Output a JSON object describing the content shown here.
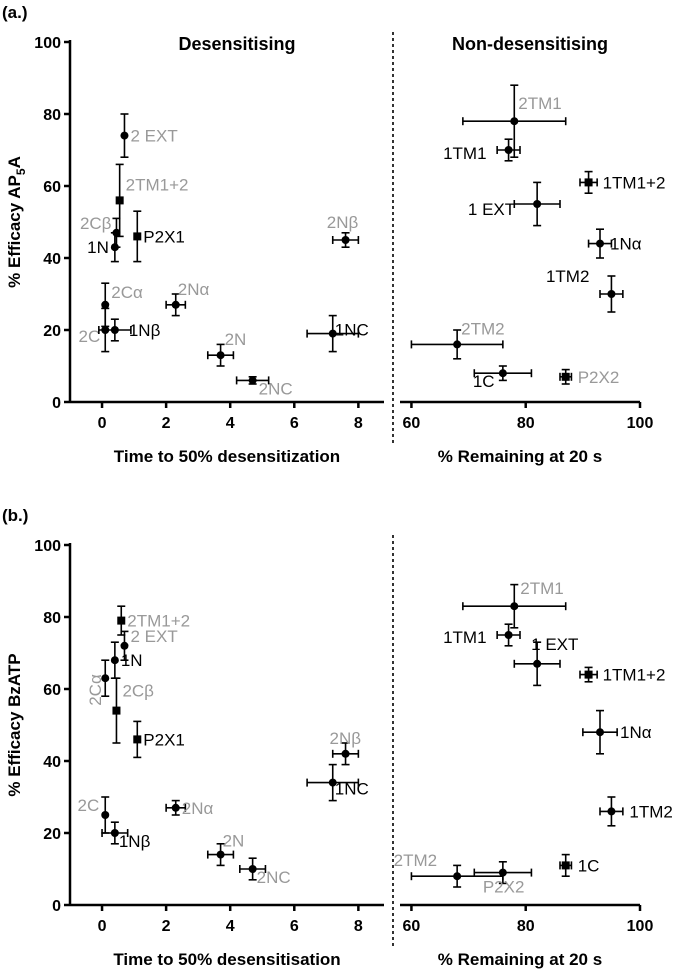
{
  "colors": {
    "black": "#000000",
    "gray": "#999999"
  },
  "chart_data": [
    {
      "type": "scatter",
      "panel_label": "(a.)",
      "ylabel_parts": [
        "% Efficacy AP",
        "5",
        "A"
      ],
      "ylim": [
        0,
        100
      ],
      "yticks": [
        "0",
        "20",
        "40",
        "60",
        "80",
        "100"
      ],
      "left": {
        "title": "Desensitising",
        "xlabel": "Time to 50% desensitization",
        "xlim": [
          -1,
          8.8
        ],
        "xticks": [
          "0",
          "2",
          "4",
          "6",
          "8"
        ],
        "points": [
          {
            "label": "2 EXT",
            "color": "gray",
            "marker": "circle",
            "x": 0.7,
            "y": 74,
            "xerr": 0,
            "yerr": 6
          },
          {
            "label": "2TM1+2",
            "color": "gray",
            "marker": "square",
            "x": 0.55,
            "y": 56,
            "xerr": 0,
            "yerr": 10
          },
          {
            "label": "P2X1",
            "color": "black",
            "marker": "square",
            "x": 1.1,
            "y": 46,
            "xerr": 0,
            "yerr": 7
          },
          {
            "label": "2Cβ",
            "color": "gray",
            "marker": "circle",
            "x": 0.45,
            "y": 47,
            "xerr": 0,
            "yerr": 4
          },
          {
            "label": "1N",
            "color": "black",
            "marker": "circle",
            "x": 0.4,
            "y": 43,
            "xerr": 0,
            "yerr": 4
          },
          {
            "label": "2Cα",
            "color": "gray",
            "marker": "circle",
            "x": 0.1,
            "y": 27,
            "xerr": 0,
            "yerr": 6
          },
          {
            "label": "2C",
            "color": "gray",
            "marker": "circle",
            "x": 0.1,
            "y": 20,
            "xerr": 0,
            "yerr": 6
          },
          {
            "label": "1Nβ",
            "color": "black",
            "marker": "circle",
            "x": 0.4,
            "y": 20,
            "xerr": 0.5,
            "yerr": 3
          },
          {
            "label": "2Nα",
            "color": "gray",
            "marker": "circle",
            "x": 2.3,
            "y": 27,
            "xerr": 0.3,
            "yerr": 3
          },
          {
            "label": "2N",
            "color": "gray",
            "marker": "circle",
            "x": 3.7,
            "y": 13,
            "xerr": 0.4,
            "yerr": 3
          },
          {
            "label": "2NC",
            "color": "gray",
            "marker": "circle",
            "x": 4.7,
            "y": 6,
            "xerr": 0.5,
            "yerr": 1
          },
          {
            "label": "1NC",
            "color": "black",
            "marker": "circle",
            "x": 7.2,
            "y": 19,
            "xerr": 0.8,
            "yerr": 5
          },
          {
            "label": "2Nβ",
            "color": "gray",
            "marker": "circle",
            "x": 7.6,
            "y": 45,
            "xerr": 0.4,
            "yerr": 2
          }
        ]
      },
      "right": {
        "title": "Non-desensitising",
        "xlabel": "% Remaining at 20 s",
        "xlim": [
          58,
          100
        ],
        "xticks": [
          "60",
          "80",
          "100"
        ],
        "points": [
          {
            "label": "2TM1",
            "color": "gray",
            "marker": "circle",
            "x": 78,
            "y": 78,
            "xerr": 9,
            "yerr": 10
          },
          {
            "label": "1TM1",
            "color": "black",
            "marker": "circle",
            "x": 77,
            "y": 70,
            "xerr": 2,
            "yerr": 3
          },
          {
            "label": "1TM1+2",
            "color": "black",
            "marker": "square",
            "x": 91,
            "y": 61,
            "xerr": 1.5,
            "yerr": 3
          },
          {
            "label": "1 EXT",
            "color": "black",
            "marker": "circle",
            "x": 82,
            "y": 55,
            "xerr": 4,
            "yerr": 6
          },
          {
            "label": "1Nα",
            "color": "black",
            "marker": "circle",
            "x": 93,
            "y": 44,
            "xerr": 2,
            "yerr": 4
          },
          {
            "label": "1TM2",
            "color": "black",
            "marker": "circle",
            "x": 95,
            "y": 30,
            "xerr": 2,
            "yerr": 5
          },
          {
            "label": "2TM2",
            "color": "gray",
            "marker": "circle",
            "x": 68,
            "y": 16,
            "xerr": 8,
            "yerr": 4
          },
          {
            "label": "1C",
            "color": "black",
            "marker": "circle",
            "x": 76,
            "y": 8,
            "xerr": 5,
            "yerr": 2
          },
          {
            "label": "P2X2",
            "color": "gray",
            "marker": "square",
            "x": 87,
            "y": 7,
            "xerr": 1,
            "yerr": 2
          }
        ]
      }
    },
    {
      "type": "scatter",
      "panel_label": "(b.)",
      "ylabel_parts": [
        "% Efficacy BzATP",
        "",
        ""
      ],
      "ylim": [
        0,
        100
      ],
      "yticks": [
        "0",
        "20",
        "40",
        "60",
        "80",
        "100"
      ],
      "left": {
        "title": "",
        "xlabel": "Time to 50% desensitisation",
        "xlim": [
          -1,
          8.8
        ],
        "xticks": [
          "0",
          "2",
          "4",
          "6",
          "8"
        ],
        "points": [
          {
            "label": "2TM1+2",
            "color": "gray",
            "marker": "square",
            "x": 0.6,
            "y": 79,
            "xerr": 0,
            "yerr": 4
          },
          {
            "label": "2 EXT",
            "color": "gray",
            "marker": "circle",
            "x": 0.7,
            "y": 72,
            "xerr": 0,
            "yerr": 4
          },
          {
            "label": "1N",
            "color": "black",
            "marker": "circle",
            "x": 0.4,
            "y": 68,
            "xerr": 0,
            "yerr": 5
          },
          {
            "label": "2Cα",
            "color": "gray",
            "marker": "circle",
            "x": 0.1,
            "y": 63,
            "xerr": 0,
            "yerr": 5
          },
          {
            "label": "2Cβ",
            "color": "gray",
            "marker": "square",
            "x": 0.45,
            "y": 54,
            "xerr": 0,
            "yerr": 9
          },
          {
            "label": "P2X1",
            "color": "black",
            "marker": "square",
            "x": 1.1,
            "y": 46,
            "xerr": 0,
            "yerr": 5
          },
          {
            "label": "2C",
            "color": "gray",
            "marker": "circle",
            "x": 0.1,
            "y": 25,
            "xerr": 0,
            "yerr": 5
          },
          {
            "label": "1Nβ",
            "color": "black",
            "marker": "circle",
            "x": 0.4,
            "y": 20,
            "xerr": 0.4,
            "yerr": 3
          },
          {
            "label": "2Nα",
            "color": "gray",
            "marker": "circle",
            "x": 2.3,
            "y": 27,
            "xerr": 0.3,
            "yerr": 2
          },
          {
            "label": "2N",
            "color": "gray",
            "marker": "circle",
            "x": 3.7,
            "y": 14,
            "xerr": 0.4,
            "yerr": 3
          },
          {
            "label": "2NC",
            "color": "gray",
            "marker": "circle",
            "x": 4.7,
            "y": 10,
            "xerr": 0.4,
            "yerr": 3
          },
          {
            "label": "1NC",
            "color": "black",
            "marker": "circle",
            "x": 7.2,
            "y": 34,
            "xerr": 0.8,
            "yerr": 5
          },
          {
            "label": "2Nβ",
            "color": "gray",
            "marker": "circle",
            "x": 7.6,
            "y": 42,
            "xerr": 0.4,
            "yerr": 3
          }
        ]
      },
      "right": {
        "title": "",
        "xlabel": "% Remaining at 20 s",
        "xlim": [
          58,
          100
        ],
        "xticks": [
          "60",
          "80",
          "100"
        ],
        "points": [
          {
            "label": "2TM1",
            "color": "gray",
            "marker": "circle",
            "x": 78,
            "y": 83,
            "xerr": 9,
            "yerr": 6
          },
          {
            "label": "1TM1",
            "color": "black",
            "marker": "circle",
            "x": 77,
            "y": 75,
            "xerr": 2,
            "yerr": 3
          },
          {
            "label": "1 EXT",
            "color": "black",
            "marker": "circle",
            "x": 82,
            "y": 67,
            "xerr": 4,
            "yerr": 6
          },
          {
            "label": "1TM1+2",
            "color": "black",
            "marker": "square",
            "x": 91,
            "y": 64,
            "xerr": 1.5,
            "yerr": 2
          },
          {
            "label": "1Nα",
            "color": "black",
            "marker": "circle",
            "x": 93,
            "y": 48,
            "xerr": 3,
            "yerr": 6
          },
          {
            "label": "1TM2",
            "color": "black",
            "marker": "circle",
            "x": 95,
            "y": 26,
            "xerr": 2,
            "yerr": 4
          },
          {
            "label": "1C",
            "color": "black",
            "marker": "square",
            "x": 87,
            "y": 11,
            "xerr": 1,
            "yerr": 3
          },
          {
            "label": "2TM2",
            "color": "gray",
            "marker": "circle",
            "x": 68,
            "y": 8,
            "xerr": 8,
            "yerr": 3
          },
          {
            "label": "P2X2",
            "color": "gray",
            "marker": "circle",
            "x": 76,
            "y": 9,
            "xerr": 5,
            "yerr": 3
          }
        ]
      }
    }
  ]
}
